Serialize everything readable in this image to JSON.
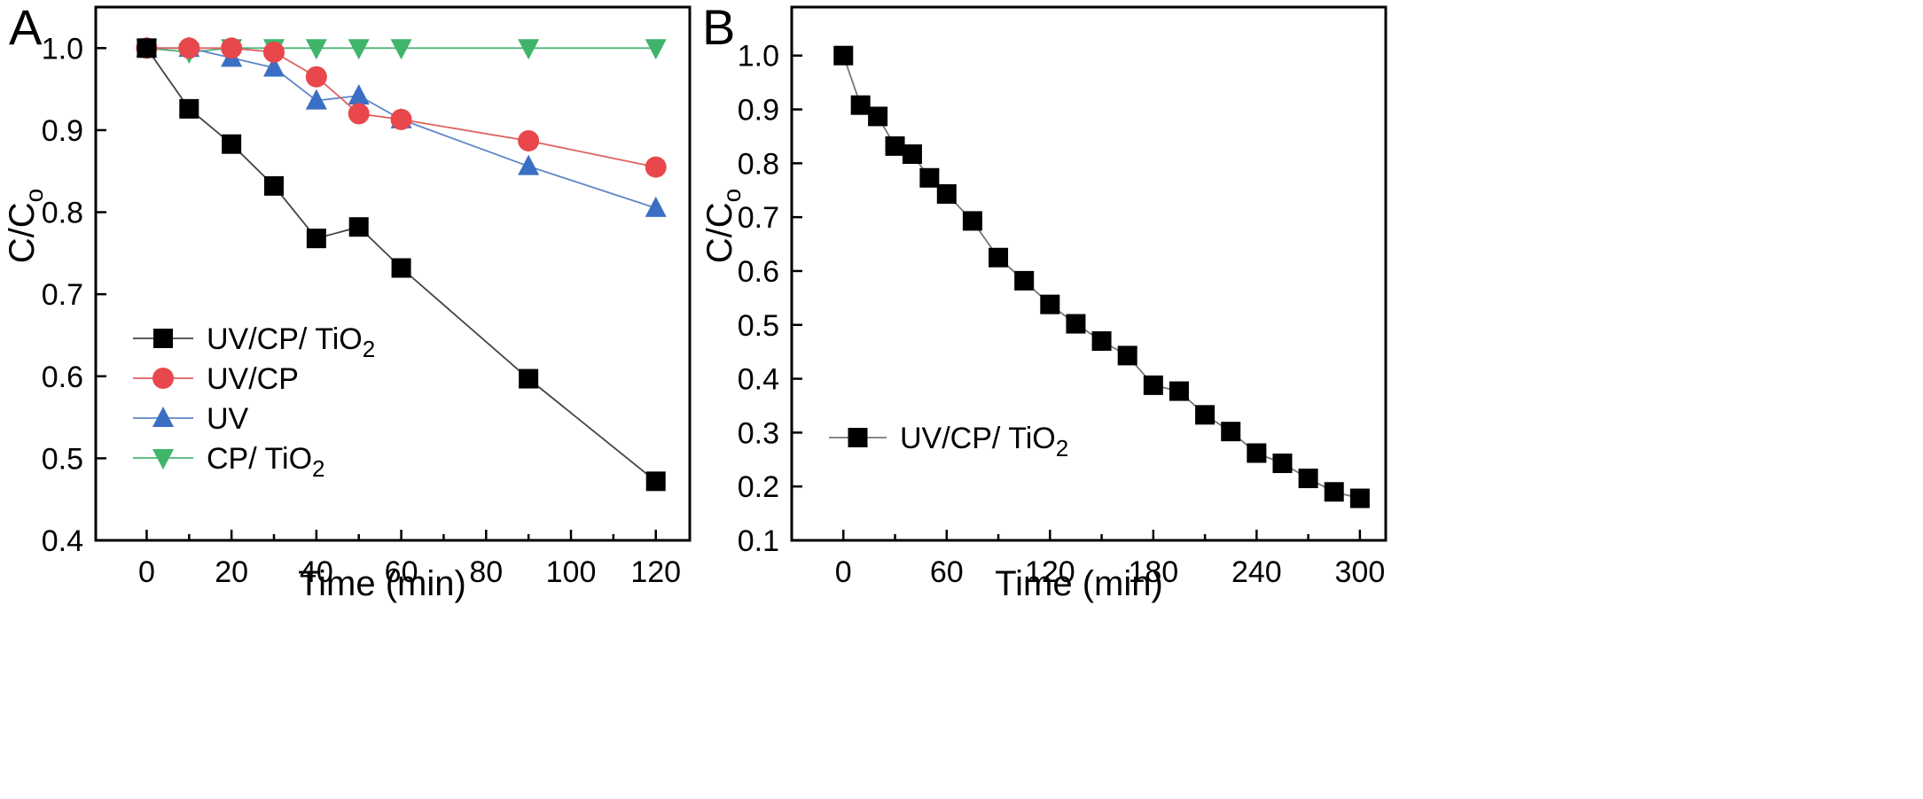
{
  "chart_data": [
    {
      "panel": "A",
      "type": "line",
      "xlabel": "Time (min)",
      "ylabel_main": "C/C",
      "ylabel_sub": "o",
      "xlim": [
        -12,
        128
      ],
      "ylim": [
        0.4,
        1.05
      ],
      "xticks": [
        0,
        20,
        40,
        60,
        80,
        100,
        120
      ],
      "yticks": [
        0.4,
        0.5,
        0.6,
        0.7,
        0.8,
        0.9,
        1.0
      ],
      "minor_xticks": [
        10,
        30,
        50,
        70,
        90,
        110
      ],
      "legend_position": "lower-left",
      "series": [
        {
          "name_main": "UV/CP/ TiO",
          "name_sub": "2",
          "color": "#000000",
          "line_color": "#444444",
          "marker": "square",
          "x": [
            0,
            10,
            20,
            30,
            40,
            50,
            60,
            90,
            120
          ],
          "y": [
            1.0,
            0.926,
            0.883,
            0.832,
            0.768,
            0.782,
            0.732,
            0.597,
            0.472
          ]
        },
        {
          "name_main": "UV/CP",
          "name_sub": "",
          "color": "#e8474c",
          "line_color": "#e06060",
          "marker": "circle",
          "x": [
            0,
            10,
            20,
            30,
            40,
            50,
            60,
            90,
            120
          ],
          "y": [
            1.0,
            1.0,
            1.0,
            0.995,
            0.965,
            0.92,
            0.913,
            0.887,
            0.855
          ]
        },
        {
          "name_main": "UV",
          "name_sub": "",
          "color": "#3a6fc4",
          "line_color": "#5c86c8",
          "marker": "triangle-up",
          "x": [
            0,
            10,
            20,
            30,
            40,
            50,
            60,
            90,
            120
          ],
          "y": [
            1.0,
            1.0,
            0.988,
            0.976,
            0.936,
            0.942,
            0.913,
            0.856,
            0.805
          ]
        },
        {
          "name_main": "CP/ TiO",
          "name_sub": "2",
          "color": "#3fb56a",
          "line_color": "#4fb577",
          "marker": "triangle-down",
          "x": [
            0,
            10,
            20,
            30,
            40,
            50,
            60,
            90,
            120
          ],
          "y": [
            1.0,
            0.995,
            1.0,
            1.0,
            1.0,
            1.0,
            1.0,
            1.0,
            1.0
          ]
        }
      ]
    },
    {
      "panel": "B",
      "type": "line",
      "xlabel": "Time (min)",
      "ylabel_main": "C/C",
      "ylabel_sub": "o",
      "xlim": [
        -30,
        315
      ],
      "ylim": [
        0.1,
        1.09
      ],
      "xticks": [
        0,
        60,
        120,
        180,
        240,
        300
      ],
      "yticks": [
        0.1,
        0.2,
        0.3,
        0.4,
        0.5,
        0.6,
        0.7,
        0.8,
        0.9,
        1.0
      ],
      "minor_xticks": [
        30,
        90,
        150,
        210,
        270
      ],
      "legend_position": "lower-left",
      "series": [
        {
          "name_main": "UV/CP/ TiO",
          "name_sub": "2",
          "color": "#000000",
          "line_color": "#777777",
          "marker": "square",
          "x": [
            0,
            10,
            20,
            30,
            40,
            50,
            60,
            75,
            90,
            105,
            120,
            135,
            150,
            165,
            180,
            195,
            210,
            225,
            240,
            255,
            270,
            285,
            300
          ],
          "y": [
            1.0,
            0.908,
            0.887,
            0.832,
            0.817,
            0.773,
            0.743,
            0.693,
            0.625,
            0.582,
            0.538,
            0.502,
            0.47,
            0.443,
            0.388,
            0.377,
            0.333,
            0.302,
            0.262,
            0.243,
            0.215,
            0.19,
            0.178
          ]
        }
      ]
    }
  ]
}
